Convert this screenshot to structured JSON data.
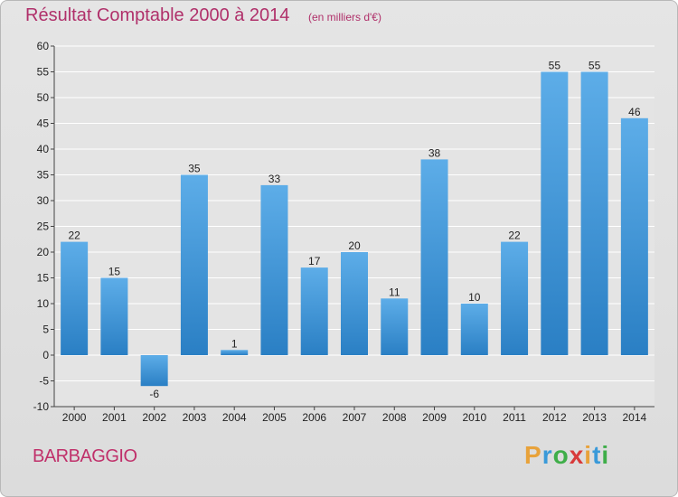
{
  "header": {
    "title": "Résultat Comptable 2000 à 2014",
    "subtitle": "(en milliers d'€)"
  },
  "footer": {
    "commune": "BARBAGGIO",
    "logo_letters": [
      "P",
      "r",
      "o",
      "x",
      "i",
      "t",
      "i"
    ],
    "logo_colors": [
      "#e8a23a",
      "#3a9ad9",
      "#3fae49",
      "#d83a3a",
      "#e8a23a",
      "#3a9ad9",
      "#3fae49"
    ]
  },
  "colors": {
    "title": "#b0306a",
    "bar_top": "#5dade8",
    "bar_bottom": "#2a7fc4"
  },
  "chart_data": {
    "type": "bar",
    "categories": [
      "2000",
      "2001",
      "2002",
      "2003",
      "2004",
      "2005",
      "2006",
      "2007",
      "2008",
      "2009",
      "2010",
      "2011",
      "2012",
      "2013",
      "2014"
    ],
    "values": [
      22,
      15,
      -6,
      35,
      1,
      33,
      17,
      20,
      11,
      38,
      10,
      22,
      55,
      55,
      46
    ],
    "ylim": [
      -10,
      60
    ],
    "yticks": [
      60,
      55,
      50,
      45,
      40,
      35,
      30,
      25,
      20,
      15,
      10,
      5,
      0,
      -5,
      -10
    ],
    "grid": true
  }
}
